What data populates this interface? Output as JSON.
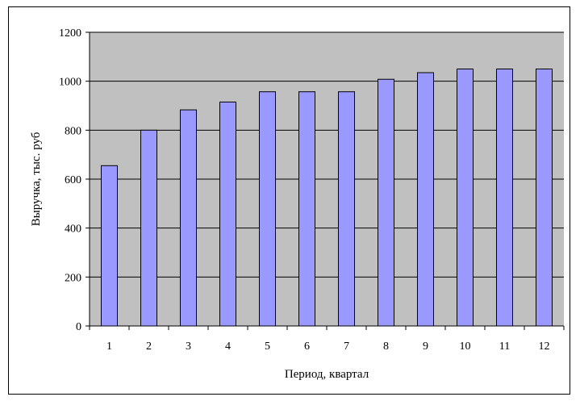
{
  "chart_data": {
    "type": "bar",
    "title": "",
    "xlabel": "Период, квартал",
    "ylabel": "Выручка, тыс. руб",
    "categories": [
      "1",
      "2",
      "3",
      "4",
      "5",
      "6",
      "7",
      "8",
      "9",
      "10",
      "11",
      "12"
    ],
    "values": [
      655,
      800,
      883,
      915,
      957,
      957,
      957,
      1008,
      1035,
      1050,
      1050,
      1050
    ],
    "ylim": [
      0,
      1200
    ],
    "yticks": [
      0,
      200,
      400,
      600,
      800,
      1000,
      1200
    ],
    "grid": true,
    "legend": "none",
    "colors": {
      "plot_background": "#c0c0c0",
      "bar_fill": "#9999ff",
      "bar_stroke": "#000000",
      "gridline": "#000000"
    }
  }
}
